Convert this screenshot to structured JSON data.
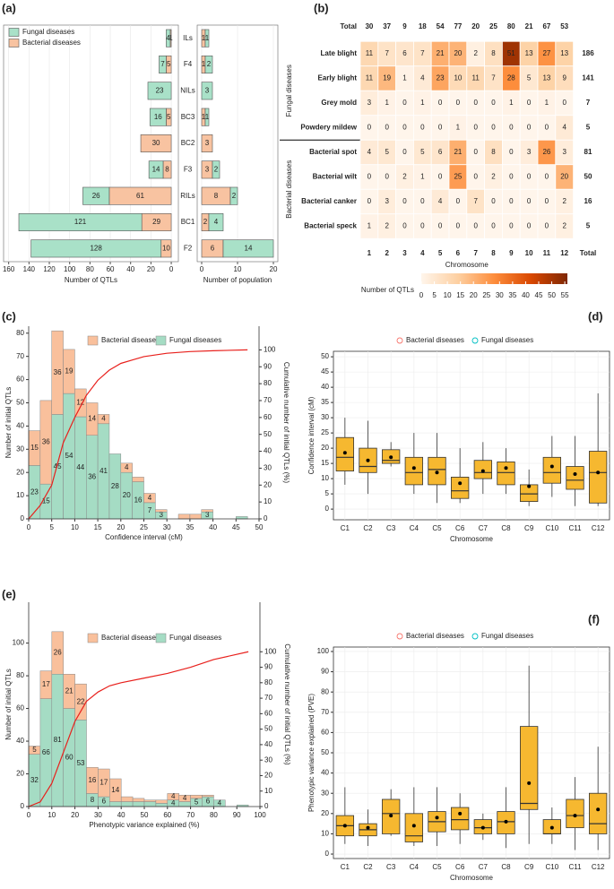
{
  "chart_data": [
    {
      "type": "bar",
      "label": "(a)",
      "xlabel": "Number of QTLs",
      "legend": "top-left",
      "grid": true,
      "categories": [
        "ILs",
        "F4",
        "NILs",
        "BC3",
        "BC2",
        "F3",
        "RILs",
        "BC1",
        "F2"
      ],
      "series": [
        {
          "name": "Fungal diseases",
          "color": "#a9e1c8",
          "values": [
            4,
            7,
            23,
            16,
            0,
            14,
            26,
            121,
            128
          ]
        },
        {
          "name": "Bacterial diseases",
          "color": "#f8c3a1",
          "values": [
            1,
            5,
            0,
            5,
            30,
            8,
            61,
            29,
            10
          ]
        }
      ],
      "xlim": [
        165,
        -7
      ],
      "xticks": [
        160,
        140,
        120,
        100,
        80,
        60,
        40,
        20,
        0
      ]
    },
    {
      "type": "bar",
      "xlabel": "Number of population",
      "grid": true,
      "series": [
        {
          "color": "#a9e1c8",
          "values": [
            1,
            2,
            3,
            1,
            0,
            2,
            2,
            4,
            14
          ]
        },
        {
          "color": "#f8c3a1",
          "values": [
            1,
            1,
            0,
            1,
            3,
            3,
            8,
            2,
            6
          ]
        }
      ],
      "xlim": [
        -1.25,
        21.25
      ],
      "xticks": [
        0,
        10,
        20
      ]
    },
    {
      "type": "heatmap",
      "label": "(b)",
      "total_label": "Total",
      "xlabel": "Chromosome",
      "columns": [
        1,
        2,
        3,
        4,
        5,
        6,
        7,
        8,
        9,
        10,
        11,
        12
      ],
      "column_totals": [
        30,
        37,
        9,
        18,
        54,
        77,
        20,
        25,
        80,
        21,
        67,
        53
      ],
      "total_color": "#cc0000",
      "groups": [
        {
          "name": "Fungal diseases",
          "rows": [
            {
              "name": "Late blight",
              "values": [
                11,
                7,
                6,
                7,
                21,
                20,
                2,
                8,
                51,
                13,
                27,
                13
              ],
              "total": 186
            },
            {
              "name": "Early blight",
              "values": [
                11,
                19,
                1,
                4,
                23,
                10,
                11,
                7,
                28,
                5,
                13,
                9
              ],
              "total": 141
            },
            {
              "name": "Grey mold",
              "values": [
                3,
                1,
                0,
                1,
                0,
                0,
                0,
                0,
                1,
                0,
                1,
                0
              ],
              "total": 7
            },
            {
              "name": "Powdery mildew",
              "values": [
                0,
                0,
                0,
                0,
                0,
                1,
                0,
                0,
                0,
                0,
                0,
                4
              ],
              "total": 5
            }
          ]
        },
        {
          "name": "Bacterial diseases",
          "rows": [
            {
              "name": "Bacterial spot",
              "values": [
                4,
                5,
                0,
                5,
                6,
                21,
                0,
                8,
                0,
                3,
                26,
                3
              ],
              "total": 81
            },
            {
              "name": "Bacterial wilt",
              "values": [
                0,
                0,
                2,
                1,
                0,
                25,
                0,
                2,
                0,
                0,
                0,
                20
              ],
              "total": 50
            },
            {
              "name": "Bacterial canker",
              "values": [
                0,
                3,
                0,
                0,
                4,
                0,
                7,
                0,
                0,
                0,
                0,
                2
              ],
              "total": 16
            },
            {
              "name": "Bacterial speck",
              "values": [
                1,
                2,
                0,
                0,
                0,
                0,
                0,
                0,
                0,
                0,
                0,
                2
              ],
              "total": 5
            }
          ]
        }
      ],
      "colorbar": {
        "title": "Number of QTLs",
        "lim": [
          0,
          56
        ],
        "ticks": [
          0,
          5,
          10,
          15,
          20,
          25,
          30,
          35,
          40,
          45,
          50,
          55
        ],
        "colors": [
          "#fff5eb",
          "#fdd0a2",
          "#fd8d3c",
          "#d94801",
          "#7f2704"
        ]
      }
    },
    {
      "type": "histogram",
      "label": "(c)",
      "xlabel": "Confidence interval (cM)",
      "ylabel": "Number of initial QTLs",
      "y2label": "Cumulative number of initial QTLs (%)",
      "bins": [
        0,
        2.5,
        5,
        7.5,
        10,
        12.5,
        15,
        17.5,
        20,
        22.5,
        25,
        27.5,
        30,
        32.5,
        35,
        37.5,
        40,
        42.5,
        45,
        47.5
      ],
      "series": [
        {
          "name": "Bacterial diseases",
          "color": "#f9c09c",
          "values": [
            15,
            36,
            36,
            19,
            12,
            14,
            4,
            0,
            4,
            2,
            4,
            1,
            0,
            2,
            2,
            1,
            0,
            0,
            0
          ]
        },
        {
          "name": "Fungal diseases",
          "color": "#a5dcc4",
          "values": [
            23,
            15,
            45,
            54,
            44,
            36,
            41,
            28,
            20,
            16,
            7,
            3,
            0,
            0,
            0,
            3,
            0,
            0,
            1
          ]
        }
      ],
      "cumulative": {
        "color": "#e8201c",
        "axis": "y2",
        "x": [
          0,
          2.5,
          5,
          7.5,
          10,
          12.5,
          15,
          17.5,
          20,
          22.5,
          25,
          27.5,
          30,
          35,
          40,
          47.5
        ],
        "values": [
          0,
          8,
          20,
          45,
          60,
          73,
          82,
          88,
          92,
          94,
          96,
          97,
          98,
          99,
          99.5,
          100
        ]
      },
      "xlim": [
        0,
        50
      ],
      "xticks": [
        0,
        5,
        10,
        15,
        20,
        25,
        30,
        35,
        40,
        45,
        50
      ],
      "ylim": [
        0,
        83
      ],
      "yticks": [
        0,
        10,
        20,
        30,
        40,
        50,
        60,
        70,
        80
      ],
      "y2lim": [
        0,
        114
      ],
      "y2ticks": [
        0,
        10,
        20,
        30,
        40,
        50,
        60,
        70,
        80,
        90,
        100
      ]
    },
    {
      "type": "box",
      "label": "(d)",
      "xlabel": "Chromosome",
      "ylabel": "Confidence interval (cM)",
      "grid": true,
      "box_color": "#f6b830",
      "categories": [
        "C1",
        "C2",
        "C3",
        "C4",
        "C5",
        "C6",
        "C7",
        "C8",
        "C9",
        "C10",
        "C11",
        "C12"
      ],
      "legend": [
        {
          "name": "Bacterial diseases",
          "color": "#f8766d"
        },
        {
          "name": "Fungal diseases",
          "color": "#00bfc4"
        }
      ],
      "boxes": {
        "min": [
          8,
          5,
          14,
          5,
          2,
          2,
          5,
          5,
          1,
          4,
          1,
          1
        ],
        "q1": [
          12.5,
          12,
          15,
          8,
          8,
          3.5,
          10,
          8,
          2.5,
          8.5,
          6.5,
          2
        ],
        "median": [
          17,
          14,
          16,
          12,
          13,
          6,
          12,
          12,
          5,
          12,
          9.5,
          12
        ],
        "q3": [
          23.5,
          20,
          19.5,
          17,
          17,
          10.5,
          16,
          15.5,
          8,
          17,
          14,
          19
        ],
        "max": [
          30,
          29,
          22,
          25,
          25,
          20,
          22,
          20,
          13,
          24,
          24,
          38
        ],
        "mean": [
          18.5,
          16,
          17,
          13.5,
          12,
          8.5,
          12.5,
          13.5,
          7.5,
          14,
          11.5,
          12
        ]
      },
      "ylim": [
        -3.5,
        51.8
      ],
      "yticks": [
        0,
        5,
        10,
        15,
        20,
        25,
        30,
        35,
        40,
        45,
        50
      ]
    },
    {
      "type": "histogram",
      "label": "(e)",
      "xlabel": "Phenotypic variance explained (%)",
      "ylabel": "Number of initial QTLs",
      "y2label": "Cumulative number of initial QTLs (%)",
      "bins": [
        0,
        5,
        10,
        15,
        20,
        25,
        30,
        35,
        40,
        45,
        50,
        55,
        60,
        65,
        70,
        75,
        80,
        85,
        90,
        95
      ],
      "series": [
        {
          "name": "Bacterial diseases",
          "color": "#f9c09c",
          "values": [
            5,
            17,
            26,
            21,
            22,
            16,
            17,
            14,
            3,
            2,
            1,
            2,
            4,
            4,
            2,
            1,
            0,
            0,
            0
          ]
        },
        {
          "name": "Fungal diseases",
          "color": "#a5dcc4",
          "values": [
            32,
            66,
            81,
            60,
            53,
            8,
            6,
            3,
            3,
            3,
            3,
            2,
            4,
            3,
            5,
            6,
            4,
            0,
            1
          ]
        }
      ],
      "cumulative": {
        "color": "#e8201c",
        "axis": "y2",
        "x": [
          0,
          5,
          10,
          15,
          20,
          25,
          30,
          35,
          40,
          50,
          60,
          70,
          80,
          95
        ],
        "values": [
          0,
          3,
          15,
          35,
          55,
          68,
          74,
          78,
          80,
          83,
          86,
          90,
          95,
          100
        ]
      },
      "xlim": [
        0,
        100
      ],
      "xticks": [
        0,
        10,
        20,
        30,
        40,
        50,
        60,
        70,
        80,
        90,
        100
      ],
      "ylim": [
        0,
        125
      ],
      "yticks": [
        0,
        20,
        40,
        60,
        80,
        100
      ],
      "y2lim": [
        0,
        132
      ],
      "y2ticks": [
        0,
        10,
        20,
        30,
        40,
        50,
        60,
        70,
        80,
        90,
        100
      ]
    },
    {
      "type": "box",
      "label": "(f)",
      "xlabel": "Chromosome",
      "ylabel": "Phenotypic variance explained (PVE)",
      "grid": true,
      "box_color": "#f6b830",
      "categories": [
        "C1",
        "C2",
        "C3",
        "C4",
        "C5",
        "C6",
        "C7",
        "C8",
        "C9",
        "C10",
        "C11",
        "C12"
      ],
      "legend": [
        {
          "name": "Bacterial diseases",
          "color": "#f8766d"
        },
        {
          "name": "Fungal diseases",
          "color": "#00bfc4"
        }
      ],
      "boxes": {
        "min": [
          5,
          4,
          9,
          4,
          4,
          5,
          7,
          3,
          5,
          5,
          2,
          2
        ],
        "q1": [
          9,
          9,
          10,
          6,
          11,
          12,
          10,
          10,
          22,
          10,
          13,
          10
        ],
        "median": [
          14,
          12,
          20,
          9,
          16,
          17,
          13,
          16,
          25,
          10,
          19,
          15
        ],
        "q3": [
          19,
          15,
          27,
          20,
          21,
          23,
          17,
          21,
          63,
          17,
          27,
          30
        ],
        "max": [
          33,
          22,
          32,
          33,
          33,
          30,
          20,
          33,
          93,
          23,
          38,
          53
        ],
        "mean": [
          14,
          13,
          19,
          14,
          18,
          20,
          13,
          16,
          35,
          13,
          19,
          22
        ]
      },
      "ylim": [
        -2.2,
        102.2
      ],
      "yticks": [
        0,
        10,
        20,
        30,
        40,
        50,
        60,
        70,
        80,
        90,
        100
      ]
    }
  ]
}
